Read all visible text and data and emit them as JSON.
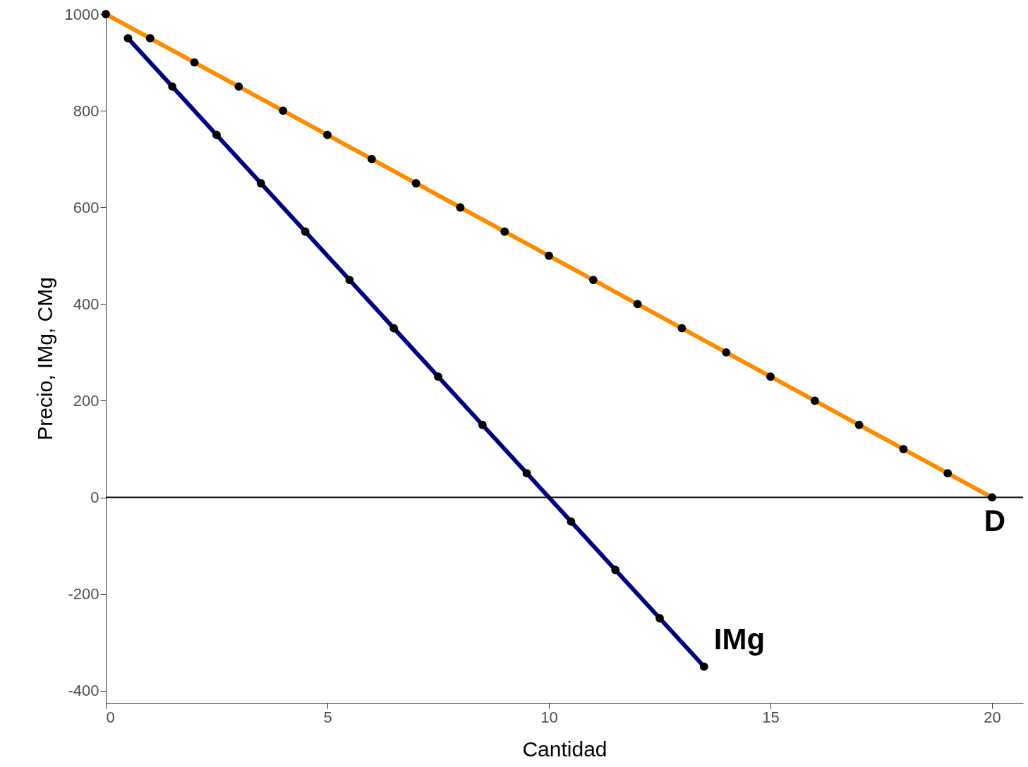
{
  "chart_data": {
    "type": "line",
    "xlabel": "Cantidad",
    "ylabel": "Precio, IMg, CMg",
    "xlim": [
      0,
      20.7
    ],
    "ylim": [
      -425,
      1000
    ],
    "xticks": [
      0,
      5,
      10,
      15,
      20
    ],
    "yticks": [
      -400,
      -200,
      0,
      200,
      400,
      600,
      800,
      1000
    ],
    "grid": false,
    "marker": "circle",
    "line_style": "solid",
    "ref_lines": [
      {
        "axis": "y",
        "value": 0,
        "color": "#000000"
      }
    ],
    "series": [
      {
        "name": "D",
        "color": "#ff8c00",
        "x": [
          0,
          1,
          2,
          3,
          4,
          5,
          6,
          7,
          8,
          9,
          10,
          11,
          12,
          13,
          14,
          15,
          16,
          17,
          18,
          19,
          20
        ],
        "values": [
          1000,
          950,
          900,
          850,
          800,
          750,
          700,
          650,
          600,
          550,
          500,
          450,
          400,
          350,
          300,
          250,
          200,
          150,
          100,
          50,
          0
        ]
      },
      {
        "name": "IMg",
        "color": "#000080",
        "x": [
          0.5,
          1.5,
          2.5,
          3.5,
          4.5,
          5.5,
          6.5,
          7.5,
          8.5,
          9.5,
          10.5,
          11.5,
          12.5,
          13.5
        ],
        "values": [
          950,
          850,
          750,
          650,
          550,
          450,
          350,
          250,
          150,
          50,
          -50,
          -150,
          -250,
          -350
        ]
      }
    ]
  }
}
